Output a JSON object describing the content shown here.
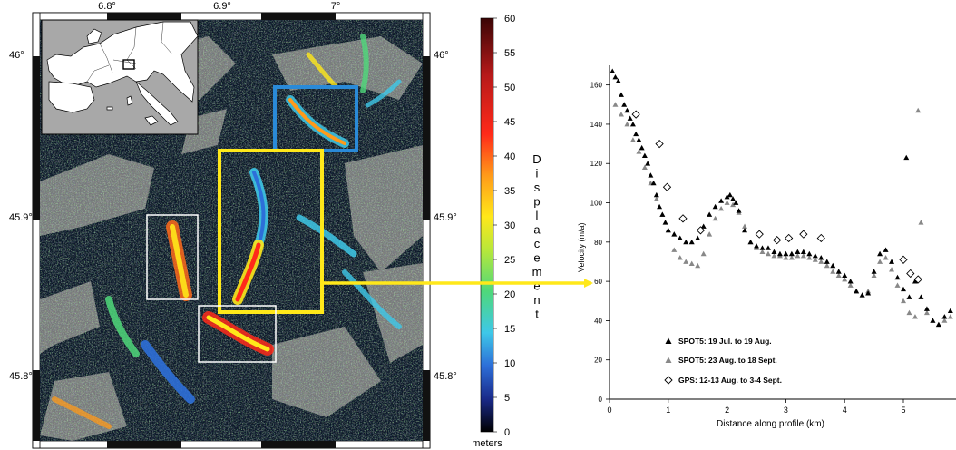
{
  "map": {
    "lon_ticks": [
      "6.8°",
      "6.9°",
      "7°"
    ],
    "lat_ticks": [
      "46°",
      "45.9°",
      "45.8°"
    ],
    "inset": "Europe overview with study area box"
  },
  "colorbar": {
    "ticks": [
      "60",
      "55",
      "50",
      "45",
      "40",
      "35",
      "30",
      "25",
      "20",
      "15",
      "10",
      "5",
      "0"
    ],
    "label": "Displacement",
    "unit": "meters",
    "colors": [
      "#000000",
      "#1a2a8a",
      "#2d6fd8",
      "#3ec8e8",
      "#4fd87a",
      "#b8e83a",
      "#ffe81a",
      "#ff9a1a",
      "#ff2a1a",
      "#b81a1a",
      "#3a0505"
    ]
  },
  "boxes": {
    "blue": "#2a8ad8",
    "yellow": "#ffe81a",
    "white": "#ffffff"
  },
  "arrow_color": "#ffe81a",
  "chart_data": {
    "type": "scatter",
    "xlabel": "Distance along profile (km)",
    "ylabel": "Velocity (m/a)",
    "xlim": [
      0,
      6
    ],
    "ylim": [
      0,
      170
    ],
    "x_ticks": [
      "0",
      "1",
      "2",
      "3",
      "4",
      "5"
    ],
    "y_ticks": [
      "0",
      "20",
      "40",
      "60",
      "80",
      "100",
      "120",
      "140",
      "160"
    ],
    "legend_position": "bottom-left",
    "series": [
      {
        "name": "SPOT5: 19 Jul. to 19 Aug.",
        "marker": "filled-triangle",
        "color": "#000000",
        "x": [
          0.05,
          0.1,
          0.15,
          0.2,
          0.25,
          0.3,
          0.35,
          0.4,
          0.45,
          0.5,
          0.55,
          0.6,
          0.65,
          0.7,
          0.75,
          0.8,
          0.85,
          0.9,
          0.95,
          1.0,
          1.1,
          1.2,
          1.3,
          1.4,
          1.5,
          1.6,
          1.7,
          1.8,
          1.9,
          2.0,
          2.05,
          2.1,
          2.15,
          2.2,
          2.3,
          2.4,
          2.5,
          2.6,
          2.7,
          2.8,
          2.9,
          3.0,
          3.1,
          3.2,
          3.3,
          3.4,
          3.5,
          3.6,
          3.7,
          3.8,
          3.9,
          4.0,
          4.1,
          4.2,
          4.3,
          4.4,
          4.5,
          4.6,
          4.7,
          4.8,
          4.9,
          5.0,
          5.05,
          5.1,
          5.2,
          5.3,
          5.4,
          5.5,
          5.6,
          5.7,
          5.8,
          5.9,
          6.0
        ],
        "y": [
          167,
          164,
          162,
          155,
          150,
          147,
          143,
          140,
          135,
          132,
          128,
          124,
          120,
          114,
          110,
          104,
          98,
          94,
          90,
          86,
          84,
          82,
          80,
          80,
          82,
          88,
          94,
          98,
          101,
          103,
          104,
          102,
          100,
          96,
          86,
          80,
          78,
          77,
          77,
          75,
          74,
          74,
          74,
          75,
          75,
          74,
          73,
          72,
          70,
          68,
          65,
          63,
          60,
          55,
          53,
          54,
          65,
          74,
          76,
          70,
          62,
          56,
          123,
          52,
          60,
          52,
          46,
          40,
          38,
          42,
          45,
          48,
          52
        ]
      },
      {
        "name": "SPOT5: 23 Aug. to 18 Sept.",
        "marker": "filled-triangle",
        "color": "#888888",
        "x": [
          0.1,
          0.2,
          0.3,
          0.4,
          0.5,
          0.6,
          0.7,
          0.8,
          0.9,
          1.0,
          1.1,
          1.2,
          1.3,
          1.4,
          1.5,
          1.6,
          1.7,
          1.8,
          1.9,
          2.0,
          2.1,
          2.2,
          2.3,
          2.4,
          2.5,
          2.6,
          2.7,
          2.8,
          2.9,
          3.0,
          3.1,
          3.2,
          3.3,
          3.4,
          3.5,
          3.6,
          3.7,
          3.8,
          3.9,
          4.0,
          4.1,
          4.2,
          4.3,
          4.4,
          4.5,
          4.6,
          4.7,
          4.8,
          4.9,
          5.0,
          5.1,
          5.2,
          5.25,
          5.3,
          5.4,
          5.5,
          5.6,
          5.7,
          5.8,
          5.9,
          6.0
        ],
        "y": [
          150,
          145,
          140,
          132,
          126,
          118,
          110,
          102,
          94,
          86,
          76,
          72,
          70,
          69,
          68,
          74,
          84,
          92,
          97,
          100,
          99,
          95,
          88,
          80,
          77,
          75,
          74,
          73,
          73,
          72,
          72,
          73,
          73,
          72,
          71,
          70,
          68,
          65,
          63,
          61,
          58,
          55,
          53,
          55,
          63,
          70,
          72,
          66,
          58,
          50,
          44,
          42,
          147,
          90,
          44,
          40,
          38,
          40,
          42,
          44,
          46
        ]
      },
      {
        "name": "GPS: 12-13 Aug. to 3-4 Sept.",
        "marker": "open-diamond",
        "color": "#000000",
        "x": [
          0.45,
          0.85,
          0.98,
          1.25,
          1.55,
          2.55,
          2.85,
          3.05,
          3.3,
          3.6,
          5.0,
          5.12,
          5.25
        ],
        "y": [
          145,
          130,
          108,
          92,
          86,
          84,
          81,
          82,
          84,
          82,
          71,
          64,
          61
        ]
      }
    ],
    "annotations": [
      {
        "x": 5.25,
        "y": 147,
        "series": "SPOT5: 23 Aug. to 18 Sept."
      },
      {
        "x": 5.05,
        "y": 123,
        "series": "SPOT5: 19 Jul. to 19 Aug."
      }
    ]
  }
}
